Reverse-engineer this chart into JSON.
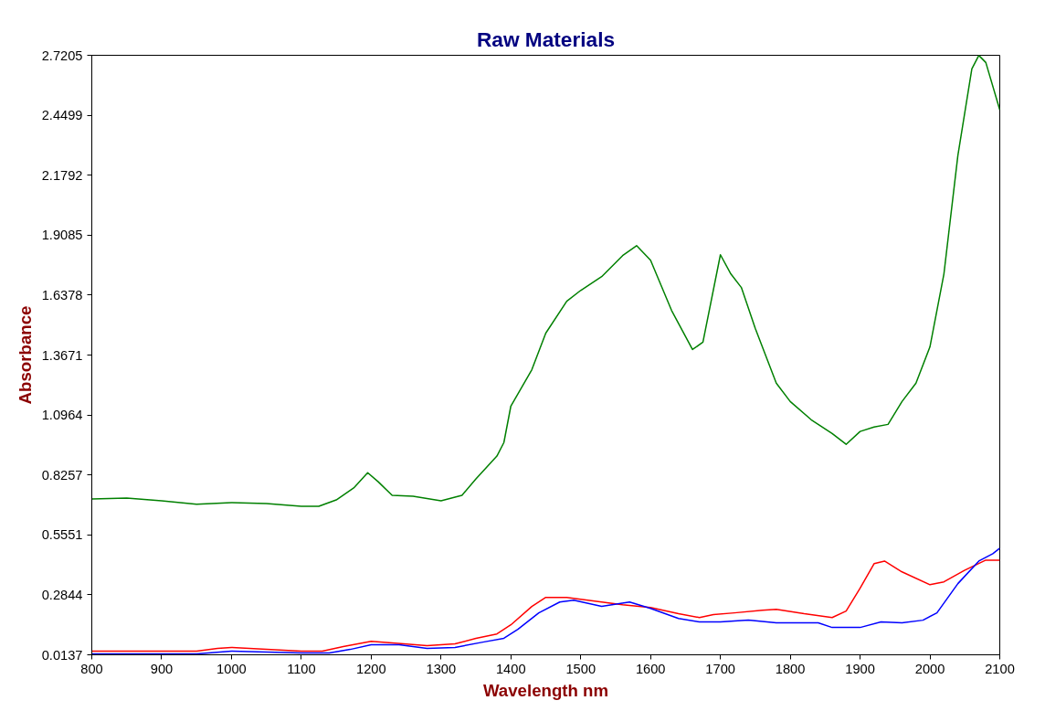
{
  "chart_data": {
    "type": "line",
    "title": "Raw Materials",
    "xlabel": "Wavelength nm",
    "ylabel": "Absorbance",
    "xlim": [
      800,
      2100
    ],
    "xticks": [
      800,
      900,
      1000,
      1100,
      1200,
      1300,
      1400,
      1500,
      1600,
      1700,
      1800,
      1900,
      2000,
      2100
    ],
    "ylim": [
      0.0137,
      2.7205
    ],
    "yticks": [
      0.0137,
      0.2844,
      0.5551,
      0.8257,
      1.0964,
      1.3671,
      1.6378,
      1.9085,
      2.1792,
      2.4499,
      2.7205
    ],
    "grid": false,
    "line_style": "solid",
    "marker": "none",
    "series": [
      {
        "color": "#008000",
        "x": [
          800,
          850,
          900,
          950,
          1000,
          1050,
          1100,
          1125,
          1150,
          1175,
          1195,
          1210,
          1230,
          1260,
          1300,
          1330,
          1350,
          1380,
          1390,
          1400,
          1430,
          1450,
          1480,
          1500,
          1530,
          1560,
          1580,
          1600,
          1630,
          1660,
          1675,
          1700,
          1715,
          1730,
          1750,
          1780,
          1800,
          1830,
          1860,
          1880,
          1900,
          1920,
          1940,
          1960,
          1980,
          2000,
          2020,
          2040,
          2060,
          2070,
          2080,
          2100
        ],
        "values": [
          0.717,
          0.721,
          0.709,
          0.693,
          0.701,
          0.697,
          0.684,
          0.684,
          0.713,
          0.767,
          0.836,
          0.795,
          0.734,
          0.73,
          0.709,
          0.734,
          0.808,
          0.911,
          0.972,
          1.137,
          1.301,
          1.466,
          1.61,
          1.659,
          1.721,
          1.816,
          1.861,
          1.795,
          1.569,
          1.392,
          1.425,
          1.82,
          1.733,
          1.672,
          1.487,
          1.24,
          1.157,
          1.075,
          1.013,
          0.964,
          1.022,
          1.042,
          1.054,
          1.157,
          1.24,
          1.404,
          1.733,
          2.268,
          2.659,
          2.72,
          2.688,
          2.474
        ]
      },
      {
        "color": "#ff0000",
        "x": [
          800,
          950,
          980,
          1000,
          1100,
          1130,
          1160,
          1200,
          1230,
          1280,
          1320,
          1350,
          1380,
          1400,
          1430,
          1450,
          1480,
          1530,
          1560,
          1600,
          1640,
          1670,
          1690,
          1720,
          1760,
          1780,
          1820,
          1860,
          1880,
          1900,
          1920,
          1935,
          1960,
          2000,
          2020,
          2050,
          2080,
          2100
        ],
        "values": [
          0.03,
          0.03,
          0.043,
          0.047,
          0.03,
          0.03,
          0.051,
          0.075,
          0.067,
          0.055,
          0.063,
          0.088,
          0.108,
          0.149,
          0.232,
          0.273,
          0.273,
          0.252,
          0.24,
          0.227,
          0.199,
          0.182,
          0.195,
          0.203,
          0.215,
          0.219,
          0.199,
          0.182,
          0.211,
          0.314,
          0.425,
          0.437,
          0.388,
          0.33,
          0.343,
          0.396,
          0.441,
          0.441
        ]
      },
      {
        "color": "#0000ff",
        "x": [
          800,
          950,
          1000,
          1100,
          1140,
          1170,
          1200,
          1240,
          1280,
          1320,
          1360,
          1390,
          1410,
          1440,
          1470,
          1490,
          1530,
          1570,
          1600,
          1640,
          1670,
          1700,
          1740,
          1780,
          1840,
          1860,
          1900,
          1930,
          1960,
          1990,
          2010,
          2040,
          2070,
          2090,
          2100
        ],
        "values": [
          0.018,
          0.018,
          0.03,
          0.022,
          0.022,
          0.038,
          0.059,
          0.059,
          0.043,
          0.047,
          0.071,
          0.088,
          0.129,
          0.203,
          0.252,
          0.26,
          0.232,
          0.252,
          0.223,
          0.178,
          0.162,
          0.162,
          0.17,
          0.158,
          0.158,
          0.137,
          0.137,
          0.162,
          0.158,
          0.17,
          0.203,
          0.335,
          0.437,
          0.47,
          0.495
        ]
      }
    ]
  }
}
